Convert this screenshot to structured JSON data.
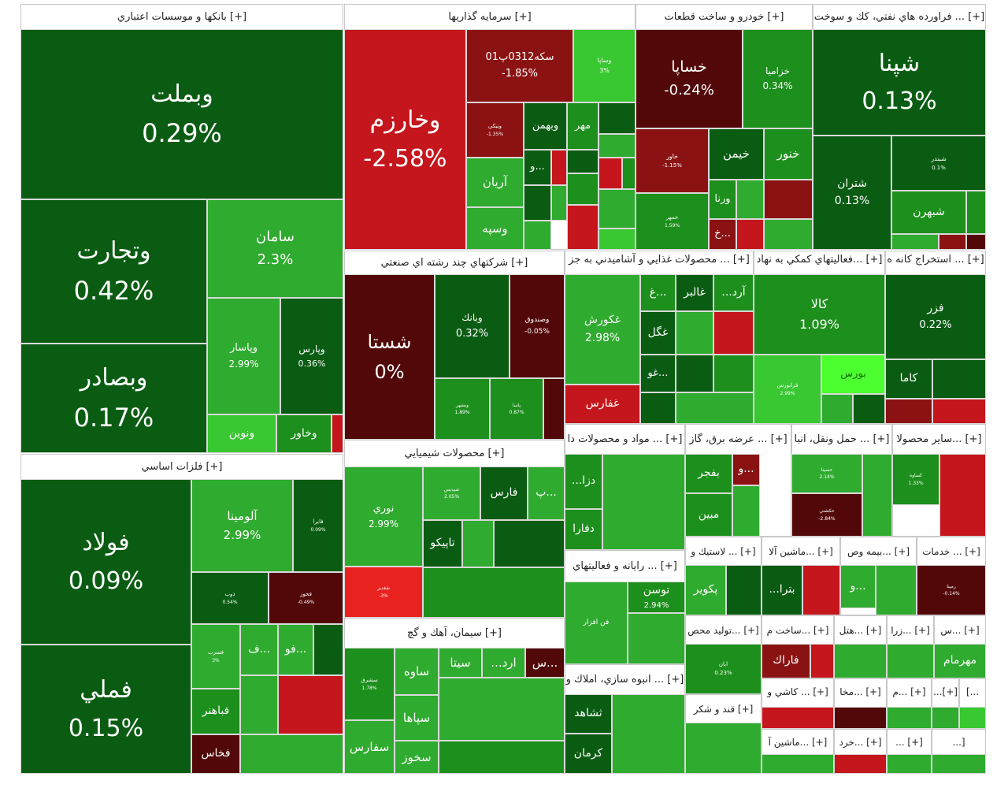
{
  "colors": {
    "dark_green": "#0a5c12",
    "mid_green": "#1c8f1c",
    "green": "#2fab2f",
    "light_green": "#39c732",
    "bright_green": "#4cff2e",
    "dark_red": "#520808",
    "maroon": "#8b1212",
    "red": "#c4161c",
    "bright_red": "#e8221f"
  },
  "chart_data": {
    "type": "treemap",
    "metric": "percent_change",
    "sectors": [
      {
        "name": "[+] بانکها و موسسات اعتباري",
        "stocks": [
          {
            "symbol": "وبملت",
            "change": "0.29%"
          },
          {
            "symbol": "وتجارت",
            "change": "0.42%"
          },
          {
            "symbol": "وبصادر",
            "change": "0.17%"
          },
          {
            "symbol": "سامان",
            "change": "2.3%"
          },
          {
            "symbol": "وپاسار",
            "change": "2.99%"
          },
          {
            "symbol": "وپارس",
            "change": "0.36%"
          },
          {
            "symbol": "ونوين",
            "change": ""
          },
          {
            "symbol": "وخاور",
            "change": ""
          }
        ]
      },
      {
        "name": "[+] سرمايه گذاريها",
        "stocks": [
          {
            "symbol": "وخارزم",
            "change": "-2.58%"
          },
          {
            "symbol": "سکه0312پ01",
            "change": "-1.85%"
          },
          {
            "symbol": "وساپا",
            "change": "3%"
          },
          {
            "symbol": "ونيكي",
            "change": "-1.35%"
          },
          {
            "symbol": "وبهمن",
            "change": ""
          },
          {
            "symbol": "مهر",
            "change": ""
          },
          {
            "symbol": "آريان",
            "change": ""
          },
          {
            "symbol": "و...",
            "change": ""
          },
          {
            "symbol": "وسپه",
            "change": ""
          }
        ]
      },
      {
        "name": "[+] خودرو و ساخت قطعات",
        "stocks": [
          {
            "symbol": "خساپا",
            "change": "-0.24%"
          },
          {
            "symbol": "خزاميا",
            "change": "0.34%"
          },
          {
            "symbol": "خاور",
            "change": "-1.15%"
          },
          {
            "symbol": "خيمن",
            "change": ""
          },
          {
            "symbol": "خنور",
            "change": ""
          },
          {
            "symbol": "خمهر",
            "change": "1.59%"
          },
          {
            "symbol": "ورنا",
            "change": ""
          },
          {
            "symbol": "خ...",
            "change": ""
          }
        ]
      },
      {
        "name": "[+] ... فراورده هاي نفتي، كك و سوخت",
        "stocks": [
          {
            "symbol": "شپنا",
            "change": "0.13%"
          },
          {
            "symbol": "شتران",
            "change": "0.13%"
          },
          {
            "symbol": "شبندر",
            "change": "0.1%"
          },
          {
            "symbol": "شبهرن",
            "change": ""
          }
        ]
      },
      {
        "name": "[+] شركتهاي چند رشته اي صنعتي",
        "stocks": [
          {
            "symbol": "شستا",
            "change": "0%"
          },
          {
            "symbol": "وبانك",
            "change": "0.32%"
          },
          {
            "symbol": "وصندوق",
            "change": "-0.05%"
          },
          {
            "symbol": "وبشهر",
            "change": "1.89%"
          },
          {
            "symbol": "پاسا",
            "change": "0.87%"
          }
        ]
      },
      {
        "name": "[+] ... محصولات غذايي و آشاميدني به جز",
        "stocks": [
          {
            "symbol": "غكورش",
            "change": "2.98%"
          },
          {
            "symbol": "غفارس",
            "change": ""
          },
          {
            "symbol": "غ...",
            "change": ""
          },
          {
            "symbol": "غالبر",
            "change": ""
          },
          {
            "symbol": "...آرد",
            "change": ""
          },
          {
            "symbol": "غگل",
            "change": ""
          },
          {
            "symbol": "غو...",
            "change": ""
          }
        ]
      },
      {
        "name": "[+] ...فعاليتهاي كمكي به نهاد",
        "stocks": [
          {
            "symbol": "كالا",
            "change": "1.09%"
          },
          {
            "symbol": "فرابورس",
            "change": "2.99%"
          },
          {
            "symbol": "بورس",
            "change": ""
          }
        ]
      },
      {
        "name": "[+] ... استخراج كانه ه",
        "stocks": [
          {
            "symbol": "فزر",
            "change": "0.22%"
          },
          {
            "symbol": "كاما",
            "change": ""
          }
        ]
      },
      {
        "name": "[+] فلزات اساسي",
        "stocks": [
          {
            "symbol": "فولاد",
            "change": "0.09%"
          },
          {
            "symbol": "فملي",
            "change": "0.15%"
          },
          {
            "symbol": "آلومينا",
            "change": "2.99%"
          },
          {
            "symbol": "فايرا",
            "change": "0.09%"
          },
          {
            "symbol": "ذوب",
            "change": "0.54%"
          },
          {
            "symbol": "فخوز",
            "change": "-0.49%"
          },
          {
            "symbol": "ف...",
            "change": ""
          },
          {
            "symbol": "فو...",
            "change": ""
          },
          {
            "symbol": "فسرب",
            "change": "3%"
          },
          {
            "symbol": "فباهنر",
            "change": ""
          },
          {
            "symbol": "فخاس",
            "change": ""
          }
        ]
      },
      {
        "name": "[+] محصولات شيميايي",
        "stocks": [
          {
            "symbol": "نوري",
            "change": "2.99%"
          },
          {
            "symbol": "شپديس",
            "change": "2.05%"
          },
          {
            "symbol": "فارس",
            "change": ""
          },
          {
            "symbol": "پ...",
            "change": ""
          },
          {
            "symbol": "تاپيكو",
            "change": ""
          },
          {
            "symbol": "شغدير",
            "change": "-3%"
          }
        ]
      },
      {
        "name": "[+] سيمان، آهك و گچ",
        "stocks": [
          {
            "symbol": "سشرق",
            "change": "1.78%"
          },
          {
            "symbol": "ساوه",
            "change": ""
          },
          {
            "symbol": "سيتا",
            "change": ""
          },
          {
            "symbol": "...ارد",
            "change": ""
          },
          {
            "symbol": "س...",
            "change": ""
          },
          {
            "symbol": "سپاها",
            "change": ""
          },
          {
            "symbol": "سفارس",
            "change": ""
          },
          {
            "symbol": "سخوز",
            "change": ""
          }
        ]
      },
      {
        "name": "[+] ... مواد و محصولات دا",
        "stocks": [
          {
            "symbol": "...دزا",
            "change": ""
          },
          {
            "symbol": "دفارا",
            "change": ""
          }
        ]
      },
      {
        "name": "[+] ... عرضه برق، گاز",
        "stocks": [
          {
            "symbol": "بفجر",
            "change": ""
          },
          {
            "symbol": "و...",
            "change": ""
          },
          {
            "symbol": "مبين",
            "change": ""
          }
        ]
      },
      {
        "name": "[+] ... حمل ونقل، انبا",
        "stocks": [
          {
            "symbol": "حسينا",
            "change": "2.14%"
          },
          {
            "symbol": "حكشتي",
            "change": "-2.84%"
          }
        ]
      },
      {
        "name": "[+] ...ساير محصولا",
        "stocks": [
          {
            "symbol": "كساوه",
            "change": "1.33%"
          }
        ]
      },
      {
        "name": "[+] ... لاستيك و",
        "stocks": [
          {
            "symbol": "پكوير",
            "change": ""
          }
        ]
      },
      {
        "name": "[+] ...ماشين آلا",
        "stocks": [
          {
            "symbol": "...بترا",
            "change": ""
          }
        ]
      },
      {
        "name": "[+] ...بيمه وص",
        "stocks": [
          {
            "symbol": "و...",
            "change": ""
          }
        ]
      },
      {
        "name": "[+] ... خدمات",
        "stocks": [
          {
            "symbol": "رمپنا",
            "change": "-0.14%"
          }
        ]
      },
      {
        "name": "[+] ... رايانه و فعاليتهاي",
        "stocks": [
          {
            "symbol": "فن افزار",
            "change": ""
          },
          {
            "symbol": "توسن",
            "change": "2.94%"
          }
        ]
      },
      {
        "name": "[+] ...توليد محص",
        "stocks": [
          {
            "symbol": "ايان",
            "change": "0.23%"
          }
        ]
      },
      {
        "name": "[+] ...ساخت م",
        "stocks": [
          {
            "symbol": "فاراك",
            "change": ""
          }
        ]
      },
      {
        "name": "[+] ...هتل",
        "stocks": []
      },
      {
        "name": "[+] ...زرا",
        "stocks": []
      },
      {
        "name": "[+] ...س",
        "stocks": [
          {
            "symbol": "مهرمام",
            "change": ""
          }
        ]
      },
      {
        "name": "[+] ... انبوه سازي، املاك و",
        "stocks": [
          {
            "symbol": "ثشاهد",
            "change": ""
          },
          {
            "symbol": "كرمان",
            "change": ""
          }
        ]
      },
      {
        "name": "[+] ... كاشي و",
        "stocks": []
      },
      {
        "name": "[+] ...مخا",
        "stocks": []
      },
      {
        "name": "[+] ...م",
        "stocks": []
      },
      {
        "name": "[+]...",
        "stocks": []
      },
      {
        "name": "...]",
        "stocks": []
      },
      {
        "name": "[+] قند و شكر",
        "stocks": []
      },
      {
        "name": "[+] ...ماشين آ",
        "stocks": []
      },
      {
        "name": "[+] ...خرد",
        "stocks": []
      },
      {
        "name": "[+] ...",
        "stocks": []
      },
      {
        "name": "[...",
        "stocks": []
      }
    ]
  }
}
